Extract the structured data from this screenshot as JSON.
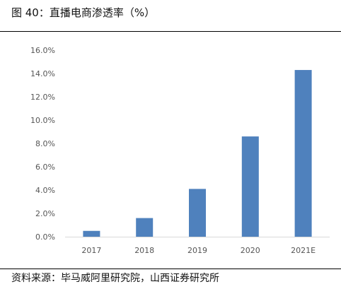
{
  "header": {
    "title": "图 40：直播电商渗透率（%）"
  },
  "footer": {
    "source": "资料来源：毕马威阿里研究院，山西证券研究所"
  },
  "chart_data": {
    "type": "bar",
    "title": "",
    "xlabel": "",
    "ylabel": "",
    "categories": [
      "2017",
      "2018",
      "2019",
      "2020",
      "2021E"
    ],
    "values": [
      0.5,
      1.6,
      4.1,
      8.6,
      14.3
    ],
    "ylim": [
      0,
      16
    ],
    "ytick_step": 2,
    "ytick_format": "%",
    "grid": false,
    "legend": "none",
    "colors": {
      "bar": "#4F81BD",
      "axis": "#D9D9D9",
      "tick_text": "#595959"
    }
  }
}
